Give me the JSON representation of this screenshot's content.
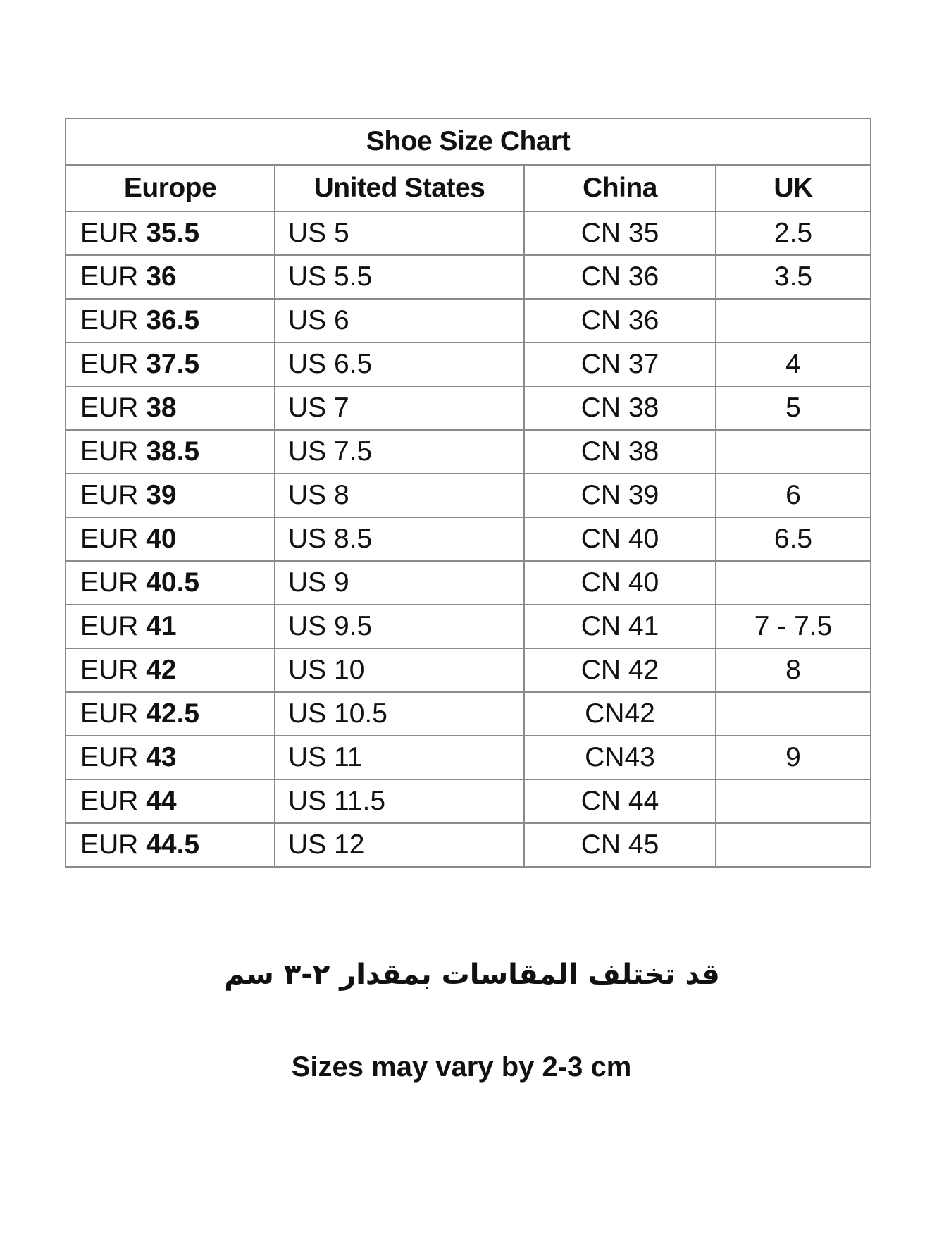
{
  "table": {
    "title": "Shoe Size Chart",
    "headers": [
      "Europe",
      "United States",
      "China",
      "UK"
    ],
    "rows": [
      {
        "eur_prefix": "EUR",
        "eur": "35.5",
        "us": "US 5",
        "cn": "CN 35",
        "uk": "2.5"
      },
      {
        "eur_prefix": "EUR",
        "eur": "36",
        "us": "US 5.5",
        "cn": "CN 36",
        "uk": "3.5"
      },
      {
        "eur_prefix": "EUR",
        "eur": "36.5",
        "us": "US 6",
        "cn": "CN 36",
        "uk": ""
      },
      {
        "eur_prefix": "EUR",
        "eur": "37.5",
        "us": "US 6.5",
        "cn": "CN 37",
        "uk": "4"
      },
      {
        "eur_prefix": "EUR",
        "eur": "38",
        "us": "US 7",
        "cn": "CN 38",
        "uk": "5"
      },
      {
        "eur_prefix": "EUR",
        "eur": "38.5",
        "us": "US 7.5",
        "cn": "CN 38",
        "uk": ""
      },
      {
        "eur_prefix": "EUR",
        "eur": "39",
        "us": "US 8",
        "cn": "CN 39",
        "uk": "6"
      },
      {
        "eur_prefix": "EUR",
        "eur": "40",
        "us": "US 8.5",
        "cn": "CN 40",
        "uk": "6.5"
      },
      {
        "eur_prefix": "EUR",
        "eur": "40.5",
        "us": "US 9",
        "cn": "CN 40",
        "uk": ""
      },
      {
        "eur_prefix": "EUR",
        "eur": "41",
        "us": "US 9.5",
        "cn": "CN 41",
        "uk": "7 - 7.5"
      },
      {
        "eur_prefix": "EUR",
        "eur": "42",
        "us": "US 10",
        "cn": "CN 42",
        "uk": "8"
      },
      {
        "eur_prefix": "EUR",
        "eur": "42.5",
        "us": "US 10.5",
        "cn": "CN42",
        "uk": ""
      },
      {
        "eur_prefix": "EUR",
        "eur": "43",
        "us": "US 11",
        "cn": "CN43",
        "uk": "9"
      },
      {
        "eur_prefix": "EUR",
        "eur": "44",
        "us": "US 11.5",
        "cn": "CN 44",
        "uk": ""
      },
      {
        "eur_prefix": "EUR",
        "eur": "44.5",
        "us": "US 12",
        "cn": "CN 45",
        "uk": ""
      }
    ]
  },
  "notes": {
    "arabic": "قد تختلف المقاسات بمقدار ٢-٣ سم",
    "english": "Sizes may vary by 2-3 cm"
  }
}
